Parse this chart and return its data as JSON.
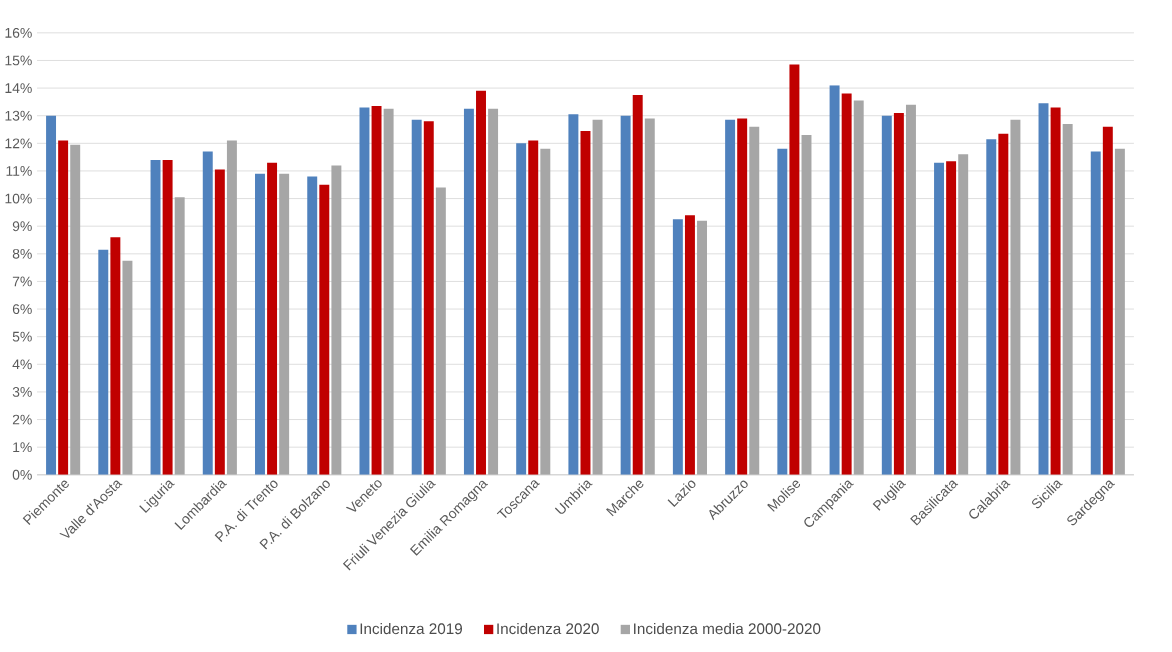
{
  "chart_data": {
    "type": "bar",
    "categories": [
      "Piemonte",
      "Valle d'Aosta",
      "Liguria",
      "Lombardia",
      "P.A. di Trento",
      "P.A. di Bolzano",
      "Veneto",
      "Friuli Venezia Giulia",
      "Emilia Romagna",
      "Toscana",
      "Umbria",
      "Marche",
      "Lazio",
      "Abruzzo",
      "Molise",
      "Campania",
      "Puglia",
      "Basilicata",
      "Calabria",
      "Sicilia",
      "Sardegna"
    ],
    "series": [
      {
        "name": "Incidenza 2019",
        "color": "#4f81bd",
        "values": [
          13.0,
          8.15,
          11.4,
          11.7,
          10.9,
          10.8,
          13.3,
          12.85,
          13.25,
          12.0,
          13.05,
          13.0,
          9.25,
          12.85,
          11.8,
          14.1,
          13.0,
          11.3,
          12.15,
          13.45,
          11.7
        ]
      },
      {
        "name": "Incidenza 2020",
        "color": "#c00000",
        "values": [
          12.1,
          8.6,
          11.4,
          11.05,
          11.3,
          10.5,
          13.35,
          12.8,
          13.9,
          12.1,
          12.45,
          13.75,
          9.4,
          12.9,
          14.85,
          13.8,
          13.1,
          11.35,
          12.35,
          13.3,
          12.6
        ]
      },
      {
        "name": "Incidenza media 2000-2020",
        "color": "#a6a6a6",
        "values": [
          11.95,
          7.75,
          10.05,
          12.1,
          10.9,
          11.2,
          13.25,
          10.4,
          13.25,
          11.8,
          12.85,
          12.9,
          9.2,
          12.6,
          12.3,
          13.55,
          13.4,
          11.6,
          12.85,
          12.7,
          11.8
        ]
      }
    ],
    "ylim": [
      0,
      16
    ],
    "yticks": [
      {
        "value": 0,
        "label": "0%"
      },
      {
        "value": 1,
        "label": "1%"
      },
      {
        "value": 2,
        "label": "2%"
      },
      {
        "value": 3,
        "label": "3%"
      },
      {
        "value": 4,
        "label": "4%"
      },
      {
        "value": 5,
        "label": "5%"
      },
      {
        "value": 6,
        "label": "6%"
      },
      {
        "value": 7,
        "label": "7%"
      },
      {
        "value": 8,
        "label": "8%"
      },
      {
        "value": 9,
        "label": "9%"
      },
      {
        "value": 10,
        "label": "10%"
      },
      {
        "value": 11,
        "label": "11%"
      },
      {
        "value": 12,
        "label": "12%"
      },
      {
        "value": 13,
        "label": "13%"
      },
      {
        "value": 14,
        "label": "14%"
      },
      {
        "value": 15,
        "label": "15%"
      },
      {
        "value": 16,
        "label": "16%"
      }
    ],
    "grid": "y",
    "legend": "bottom"
  }
}
